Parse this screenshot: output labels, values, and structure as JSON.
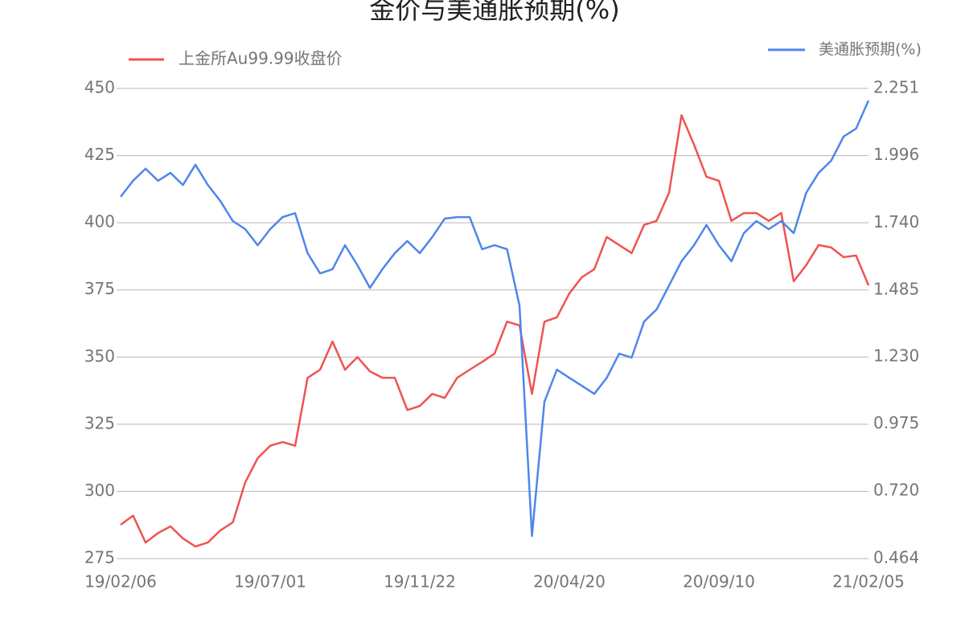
{
  "chart_data": {
    "type": "line",
    "title": "金价与美通胀预期(%)",
    "categories": [
      "19/02/06",
      null,
      null,
      null,
      null,
      null,
      null,
      null,
      null,
      null,
      null,
      null,
      "19/07/01",
      null,
      null,
      null,
      null,
      null,
      null,
      null,
      null,
      null,
      null,
      null,
      "19/11/22",
      null,
      null,
      null,
      null,
      null,
      null,
      null,
      null,
      null,
      null,
      null,
      "20/04/20",
      null,
      null,
      null,
      null,
      null,
      null,
      null,
      null,
      null,
      null,
      null,
      "20/09/10",
      null,
      null,
      null,
      null,
      null,
      null,
      null,
      null,
      null,
      null,
      null,
      "21/02/05"
    ],
    "series": [
      {
        "name": "上金所Au99.99收盘价",
        "color": "#ef5350",
        "values": [
          287.6,
          291,
          281,
          284.5,
          287,
          282.5,
          279.5,
          281,
          285.5,
          288.5,
          303.4,
          312.4,
          317,
          318.4,
          317,
          342.3,
          345.3,
          355.8,
          345.3,
          350,
          344.7,
          342.3,
          342.3,
          330.3,
          331.8,
          336.3,
          334.8,
          342.3,
          345.3,
          348.2,
          351.3,
          363.2,
          361.8,
          336.3,
          363.2,
          364.8,
          373.7,
          379.7,
          382.7,
          394.7,
          391.7,
          388.7,
          399.2,
          400.7,
          411.2,
          440,
          429.1,
          417.1,
          415.6,
          400.7,
          403.6,
          403.6,
          400.7,
          403.6,
          378.2,
          384.2,
          391.7,
          390.8,
          387.2,
          387.8,
          376.7
        ]
      },
      {
        "name": "美通胀预期(%)",
        "color": "#4e86ec",
        "axis": "y2",
        "values": [
          1.839,
          1.9,
          1.946,
          1.9,
          1.93,
          1.884,
          1.961,
          1.884,
          1.823,
          1.747,
          1.716,
          1.655,
          1.716,
          1.762,
          1.777,
          1.625,
          1.548,
          1.564,
          1.655,
          1.579,
          1.493,
          1.564,
          1.625,
          1.671,
          1.625,
          1.686,
          1.756,
          1.762,
          1.762,
          1.64,
          1.655,
          1.64,
          1.426,
          0.55,
          1.06,
          1.182,
          1.151,
          1.121,
          1.09,
          1.151,
          1.243,
          1.228,
          1.365,
          1.411,
          1.502,
          1.594,
          1.655,
          1.732,
          1.655,
          1.594,
          1.701,
          1.747,
          1.716,
          1.747,
          1.701,
          1.854,
          1.93,
          1.976,
          2.068,
          2.098,
          2.205
        ]
      }
    ],
    "ylim": [
      275,
      450
    ],
    "yticks": [
      275,
      300,
      325,
      350,
      375,
      400,
      425,
      450
    ],
    "y2lim": [
      0.464,
      2.251
    ],
    "y2ticks": [
      0.464,
      {
        "value": 0.72,
        "label": "0.720"
      },
      0.975,
      {
        "value": 1.23,
        "label": "1.230"
      },
      1.485,
      {
        "value": 1.74,
        "label": "1.740"
      },
      1.996,
      2.251
    ],
    "grid": true
  }
}
